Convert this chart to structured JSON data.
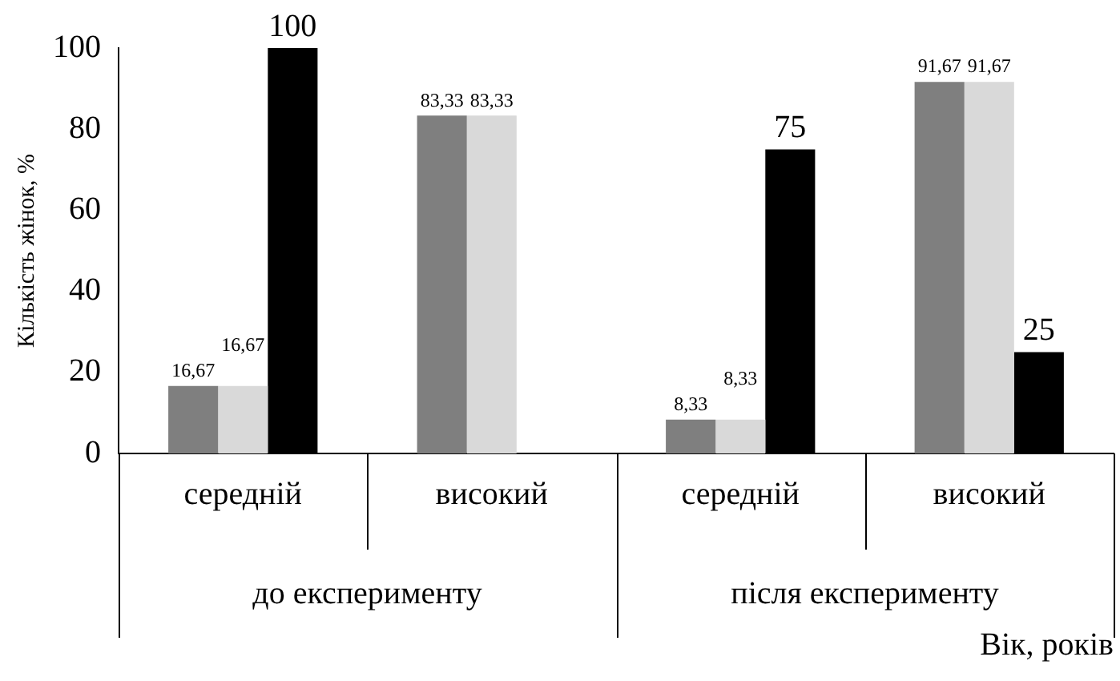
{
  "chart_data": {
    "type": "bar",
    "ylabel": "Кількість жінок, %",
    "xlabel": "Вік, років",
    "categories": [
      "середній",
      "високий",
      "середній",
      "високий"
    ],
    "annotations": [
      "до експерименту",
      "після експерименту"
    ],
    "series": [
      {
        "color": "#7f7f7f",
        "values": [
          16.67,
          83.33,
          8.33,
          91.67
        ],
        "value_labels": [
          "16,67",
          "83,33",
          "8,33",
          "91,67"
        ]
      },
      {
        "color": "#d9d9d9",
        "values": [
          16.67,
          83.33,
          8.33,
          91.67
        ],
        "value_labels": [
          "16,67",
          "83,33",
          "8,33",
          "91,67"
        ]
      },
      {
        "color": "#000000",
        "values": [
          100,
          null,
          75,
          25
        ],
        "value_labels": [
          "100",
          null,
          "75",
          "25"
        ]
      }
    ],
    "ylim": [
      0,
      100
    ],
    "yticks": [
      0,
      20,
      40,
      60,
      80,
      100
    ],
    "grid": false,
    "legend": false
  }
}
